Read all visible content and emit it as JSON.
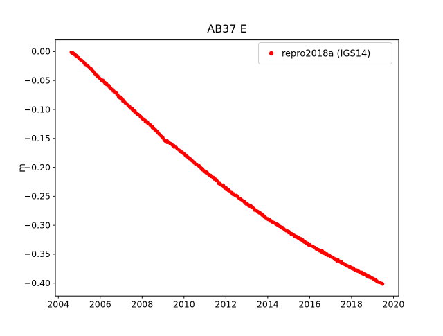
{
  "figure": {
    "background_color": "#ffffff"
  },
  "chart_data": {
    "type": "scatter",
    "title": "AB37 E",
    "xlabel": "",
    "ylabel": "m",
    "xlim": [
      2003.86,
      2020.25
    ],
    "ylim": [
      -0.4221,
      0.0201
    ],
    "xticks": [
      2004,
      2006,
      2008,
      2010,
      2012,
      2014,
      2016,
      2018,
      2020
    ],
    "yticks": [
      0.0,
      -0.05,
      -0.1,
      -0.15,
      -0.2,
      -0.25,
      -0.3,
      -0.35,
      -0.4
    ],
    "grid": false,
    "legend": {
      "position": "upper right",
      "entries": [
        {
          "label": "repro2018a (IGS14)",
          "marker": "dot",
          "color": "#ff0000"
        }
      ]
    },
    "series": [
      {
        "name": "repro2018a (IGS14)",
        "color": "#ff0000",
        "x": [
          2004.6,
          2004.75,
          2005.0,
          2005.25,
          2005.5,
          2005.75,
          2006.0,
          2006.25,
          2006.5,
          2006.75,
          2007.0,
          2007.25,
          2007.5,
          2007.75,
          2008.0,
          2008.25,
          2008.5,
          2008.75,
          2008.9,
          2009.0,
          2009.1,
          2009.25,
          2009.5,
          2009.75,
          2010.0,
          2010.25,
          2010.5,
          2010.75,
          2011.0,
          2011.25,
          2011.5,
          2011.75,
          2012.0,
          2012.25,
          2012.5,
          2012.75,
          2013.0,
          2013.25,
          2013.5,
          2013.75,
          2013.9,
          2014.0,
          2014.25,
          2014.5,
          2014.75,
          2015.0,
          2015.25,
          2015.5,
          2015.75,
          2016.0,
          2016.25,
          2016.5,
          2016.75,
          2017.0,
          2017.25,
          2017.5,
          2017.75,
          2018.0,
          2018.25,
          2018.5,
          2018.75,
          2019.0,
          2019.25,
          2019.5
        ],
        "y": [
          0.0,
          -0.004,
          -0.012,
          -0.02,
          -0.028,
          -0.038,
          -0.047,
          -0.055,
          -0.063,
          -0.072,
          -0.081,
          -0.09,
          -0.099,
          -0.107,
          -0.115,
          -0.123,
          -0.131,
          -0.14,
          -0.146,
          -0.149,
          -0.155,
          -0.156,
          -0.163,
          -0.17,
          -0.177,
          -0.184,
          -0.192,
          -0.199,
          -0.207,
          -0.214,
          -0.221,
          -0.229,
          -0.236,
          -0.243,
          -0.249,
          -0.256,
          -0.263,
          -0.269,
          -0.276,
          -0.282,
          -0.287,
          -0.289,
          -0.295,
          -0.3,
          -0.306,
          -0.312,
          -0.317,
          -0.323,
          -0.328,
          -0.334,
          -0.339,
          -0.344,
          -0.349,
          -0.354,
          -0.359,
          -0.364,
          -0.369,
          -0.374,
          -0.378,
          -0.383,
          -0.387,
          -0.392,
          -0.397,
          -0.402
        ]
      }
    ],
    "render": {
      "sample_step_years": 0.01,
      "jitter_m": 0.0019,
      "marker_radius_px": 1.9
    }
  }
}
